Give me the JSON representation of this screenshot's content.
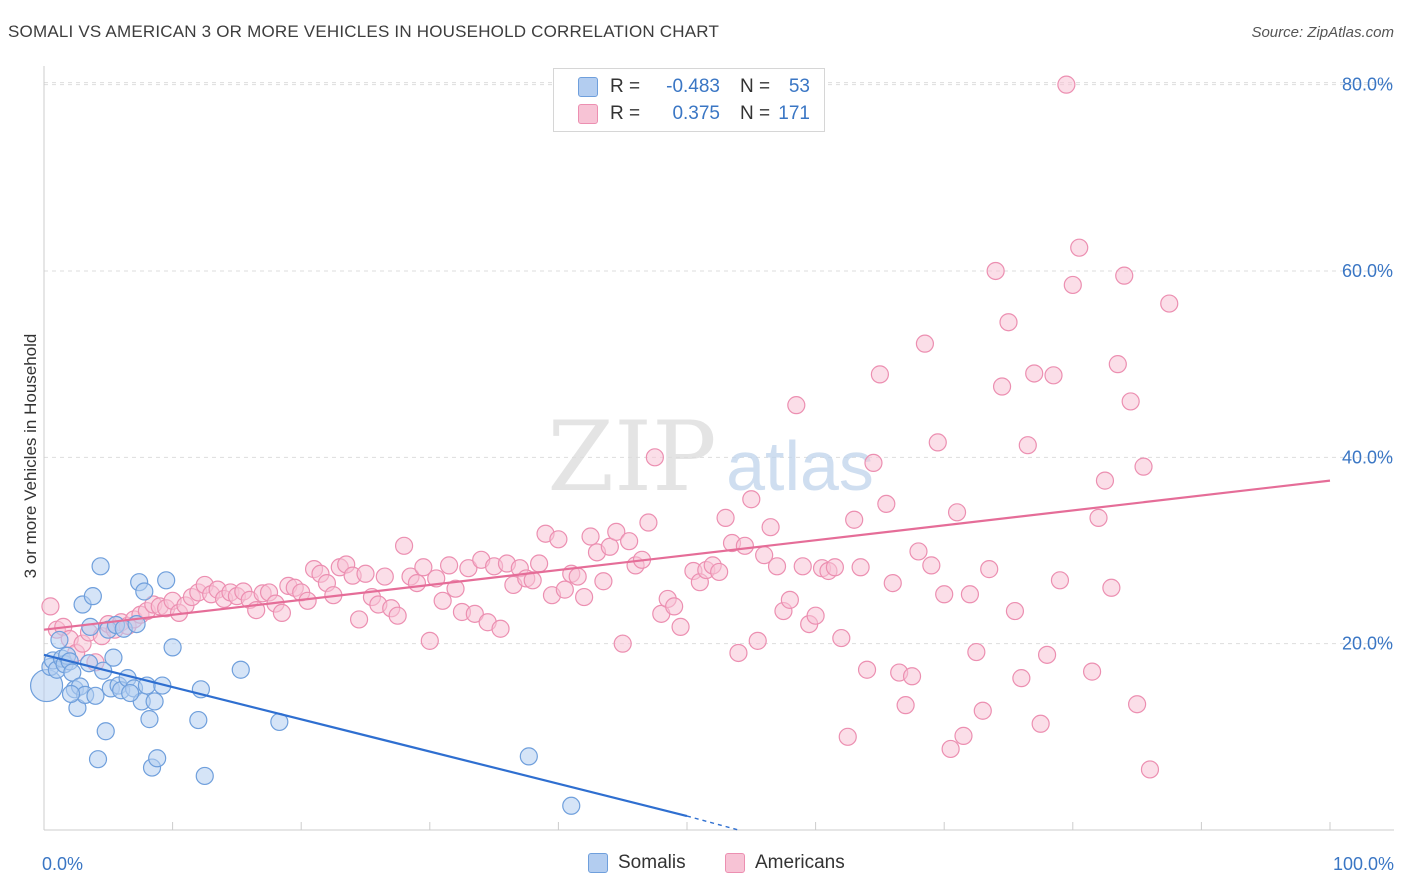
{
  "title": "SOMALI VS AMERICAN 3 OR MORE VEHICLES IN HOUSEHOLD CORRELATION CHART",
  "source": "Source: ZipAtlas.com",
  "watermark": {
    "zip": "ZIP",
    "atlas": "atlas"
  },
  "legend": {
    "rows": [
      {
        "r_label": "R =",
        "r_value": "-0.483",
        "n_label": "N =",
        "n_value": "53"
      },
      {
        "r_label": "R =",
        "r_value": "0.375",
        "n_label": "N =",
        "n_value": "171"
      }
    ]
  },
  "bottom_legend": [
    "Somalis",
    "Americans"
  ],
  "colors": {
    "somalis_fill": "#b3cdf0",
    "somalis_stroke": "#6f9fdc",
    "somalis_line": "#2f6fd0",
    "americans_fill": "#f7c3d5",
    "americans_stroke": "#ec8fb1",
    "americans_line": "#e56d98",
    "tick_label": "#3a76c4",
    "grid": "#dddddd"
  },
  "chart_data": {
    "type": "scatter",
    "title": "SOMALI VS AMERICAN 3 OR MORE VEHICLES IN HOUSEHOLD CORRELATION CHART",
    "xlabel": "",
    "ylabel": "3 or more Vehicles in Household",
    "xlim": [
      0,
      100
    ],
    "ylim": [
      0,
      82
    ],
    "x_tick_labels": [
      {
        "value": 0,
        "label": "0.0%"
      },
      {
        "value": 100,
        "label": "100.0%"
      }
    ],
    "y_tick_labels": [
      {
        "value": 20,
        "label": "20.0%"
      },
      {
        "value": 40,
        "label": "40.0%"
      },
      {
        "value": 60,
        "label": "60.0%"
      },
      {
        "value": 80,
        "label": "80.0%"
      }
    ],
    "grid": true,
    "legend_position": "top-center",
    "series": [
      {
        "name": "Somalis",
        "r": -0.483,
        "n": 53,
        "trend": {
          "x": [
            0,
            50
          ],
          "y": [
            18.8,
            1.5
          ],
          "dashed_to": [
            54,
            0
          ]
        },
        "points": [
          [
            0.2,
            15.5
          ],
          [
            0.5,
            17.5
          ],
          [
            0.7,
            18.2
          ],
          [
            1.0,
            17.2
          ],
          [
            1.2,
            20.4
          ],
          [
            1.4,
            18.4
          ],
          [
            1.6,
            17.8
          ],
          [
            1.8,
            18.7
          ],
          [
            2.0,
            18.1
          ],
          [
            2.2,
            16.9
          ],
          [
            2.4,
            15.1
          ],
          [
            2.6,
            13.1
          ],
          [
            2.8,
            15.4
          ],
          [
            3.0,
            24.2
          ],
          [
            3.2,
            14.5
          ],
          [
            3.5,
            17.9
          ],
          [
            3.6,
            21.8
          ],
          [
            3.8,
            25.1
          ],
          [
            4.0,
            14.4
          ],
          [
            4.2,
            7.6
          ],
          [
            4.4,
            28.3
          ],
          [
            4.6,
            17.1
          ],
          [
            4.8,
            10.6
          ],
          [
            5.0,
            21.5
          ],
          [
            5.2,
            15.2
          ],
          [
            5.4,
            18.5
          ],
          [
            5.6,
            22.0
          ],
          [
            5.8,
            15.5
          ],
          [
            6.0,
            15.0
          ],
          [
            6.2,
            21.6
          ],
          [
            6.5,
            16.3
          ],
          [
            7.0,
            15.2
          ],
          [
            7.2,
            22.1
          ],
          [
            7.4,
            26.6
          ],
          [
            7.6,
            13.8
          ],
          [
            7.8,
            25.6
          ],
          [
            8.0,
            15.5
          ],
          [
            8.2,
            11.9
          ],
          [
            8.4,
            6.7
          ],
          [
            8.6,
            13.8
          ],
          [
            8.8,
            7.7
          ],
          [
            9.2,
            15.5
          ],
          [
            9.5,
            26.8
          ],
          [
            10.0,
            19.6
          ],
          [
            12.0,
            11.8
          ],
          [
            12.2,
            15.1
          ],
          [
            12.5,
            5.8
          ],
          [
            15.3,
            17.2
          ],
          [
            18.3,
            11.6
          ],
          [
            37.7,
            7.9
          ],
          [
            41.0,
            2.6
          ],
          [
            2.1,
            14.6
          ],
          [
            6.7,
            14.7
          ]
        ]
      },
      {
        "name": "Americans",
        "r": 0.375,
        "n": 171,
        "trend": {
          "x": [
            0,
            100
          ],
          "y": [
            21.5,
            37.5
          ]
        },
        "points": [
          [
            0.5,
            24.0
          ],
          [
            1.0,
            21.5
          ],
          [
            1.5,
            21.8
          ],
          [
            2.0,
            20.5
          ],
          [
            2.5,
            19.0
          ],
          [
            3.0,
            20.0
          ],
          [
            3.5,
            21.2
          ],
          [
            4.0,
            18.0
          ],
          [
            4.5,
            20.8
          ],
          [
            5.0,
            22.1
          ],
          [
            5.5,
            21.5
          ],
          [
            6.0,
            22.3
          ],
          [
            6.5,
            21.9
          ],
          [
            7.0,
            22.6
          ],
          [
            7.5,
            23.1
          ],
          [
            8.0,
            23.5
          ],
          [
            8.5,
            24.2
          ],
          [
            9.0,
            24.0
          ],
          [
            9.5,
            23.8
          ],
          [
            10.0,
            24.6
          ],
          [
            10.5,
            23.3
          ],
          [
            11.0,
            24.1
          ],
          [
            11.5,
            25.0
          ],
          [
            12.0,
            25.5
          ],
          [
            12.5,
            26.3
          ],
          [
            13.0,
            25.3
          ],
          [
            13.5,
            25.8
          ],
          [
            14.0,
            24.8
          ],
          [
            14.5,
            25.5
          ],
          [
            15.0,
            25.1
          ],
          [
            15.5,
            25.6
          ],
          [
            16.0,
            24.7
          ],
          [
            16.5,
            23.6
          ],
          [
            17.0,
            25.4
          ],
          [
            17.5,
            25.5
          ],
          [
            18.0,
            24.3
          ],
          [
            18.5,
            23.3
          ],
          [
            19.0,
            26.2
          ],
          [
            19.5,
            26.0
          ],
          [
            20.0,
            25.5
          ],
          [
            20.5,
            24.6
          ],
          [
            21.0,
            28.0
          ],
          [
            21.5,
            27.5
          ],
          [
            22.0,
            26.5
          ],
          [
            22.5,
            25.2
          ],
          [
            23.0,
            28.2
          ],
          [
            23.5,
            28.5
          ],
          [
            24.0,
            27.3
          ],
          [
            24.5,
            22.6
          ],
          [
            25.0,
            27.5
          ],
          [
            25.5,
            25.0
          ],
          [
            26.0,
            24.2
          ],
          [
            26.5,
            27.2
          ],
          [
            27.0,
            23.8
          ],
          [
            27.5,
            23.0
          ],
          [
            28.0,
            30.5
          ],
          [
            28.5,
            27.2
          ],
          [
            29.0,
            26.5
          ],
          [
            29.5,
            28.2
          ],
          [
            30.0,
            20.3
          ],
          [
            30.5,
            27.0
          ],
          [
            31.0,
            24.6
          ],
          [
            31.5,
            28.4
          ],
          [
            32.0,
            25.9
          ],
          [
            32.5,
            23.4
          ],
          [
            33.0,
            28.1
          ],
          [
            33.5,
            23.2
          ],
          [
            34.0,
            29.0
          ],
          [
            34.5,
            22.3
          ],
          [
            35.0,
            28.3
          ],
          [
            35.5,
            21.6
          ],
          [
            36.0,
            28.6
          ],
          [
            36.5,
            26.3
          ],
          [
            37.0,
            28.1
          ],
          [
            37.5,
            27.0
          ],
          [
            38.0,
            26.8
          ],
          [
            38.5,
            28.6
          ],
          [
            39.0,
            31.8
          ],
          [
            39.5,
            25.2
          ],
          [
            40.0,
            31.2
          ],
          [
            40.5,
            25.8
          ],
          [
            41.0,
            27.5
          ],
          [
            41.5,
            27.2
          ],
          [
            42.0,
            25.0
          ],
          [
            42.5,
            31.5
          ],
          [
            43.0,
            29.8
          ],
          [
            43.5,
            26.7
          ],
          [
            44.0,
            30.4
          ],
          [
            44.5,
            32.0
          ],
          [
            45.0,
            20.0
          ],
          [
            45.5,
            31.0
          ],
          [
            46.0,
            28.4
          ],
          [
            46.5,
            29.0
          ],
          [
            47.0,
            33.0
          ],
          [
            47.5,
            40.0
          ],
          [
            48.0,
            23.2
          ],
          [
            48.5,
            24.8
          ],
          [
            49.0,
            24.0
          ],
          [
            49.5,
            21.8
          ],
          [
            50.5,
            27.8
          ],
          [
            51.0,
            26.6
          ],
          [
            51.5,
            27.9
          ],
          [
            52.0,
            28.4
          ],
          [
            52.5,
            27.7
          ],
          [
            53.0,
            33.5
          ],
          [
            53.5,
            30.8
          ],
          [
            54.0,
            19.0
          ],
          [
            54.5,
            30.5
          ],
          [
            55.0,
            35.5
          ],
          [
            55.5,
            20.3
          ],
          [
            56.0,
            29.5
          ],
          [
            56.5,
            32.5
          ],
          [
            57.0,
            28.3
          ],
          [
            57.5,
            23.5
          ],
          [
            58.0,
            24.7
          ],
          [
            58.5,
            45.6
          ],
          [
            59.0,
            28.3
          ],
          [
            59.5,
            22.1
          ],
          [
            60.0,
            23.0
          ],
          [
            60.5,
            28.1
          ],
          [
            61.0,
            27.8
          ],
          [
            61.5,
            28.2
          ],
          [
            62.0,
            20.6
          ],
          [
            62.5,
            10.0
          ],
          [
            63.0,
            33.3
          ],
          [
            63.5,
            28.2
          ],
          [
            64.0,
            17.2
          ],
          [
            64.5,
            39.4
          ],
          [
            65.0,
            48.9
          ],
          [
            65.5,
            35.0
          ],
          [
            66.0,
            26.5
          ],
          [
            66.5,
            16.9
          ],
          [
            67.0,
            13.4
          ],
          [
            67.5,
            16.5
          ],
          [
            68.0,
            29.9
          ],
          [
            68.5,
            52.2
          ],
          [
            69.0,
            28.4
          ],
          [
            69.5,
            41.6
          ],
          [
            70.0,
            25.3
          ],
          [
            70.5,
            8.7
          ],
          [
            71.0,
            34.1
          ],
          [
            71.5,
            10.1
          ],
          [
            72.0,
            25.3
          ],
          [
            72.5,
            19.1
          ],
          [
            73.0,
            12.8
          ],
          [
            73.5,
            28.0
          ],
          [
            74.0,
            60.0
          ],
          [
            74.5,
            47.6
          ],
          [
            75.0,
            54.5
          ],
          [
            75.5,
            23.5
          ],
          [
            76.0,
            16.3
          ],
          [
            76.5,
            41.3
          ],
          [
            77.0,
            49.0
          ],
          [
            77.5,
            11.4
          ],
          [
            78.0,
            18.8
          ],
          [
            78.5,
            48.8
          ],
          [
            79.0,
            26.8
          ],
          [
            79.5,
            80.0
          ],
          [
            80.0,
            58.5
          ],
          [
            80.5,
            62.5
          ],
          [
            81.5,
            17.0
          ],
          [
            82.0,
            33.5
          ],
          [
            82.5,
            37.5
          ],
          [
            83.0,
            26.0
          ],
          [
            83.5,
            50.0
          ],
          [
            84.0,
            59.5
          ],
          [
            84.5,
            46.0
          ],
          [
            85.0,
            13.5
          ],
          [
            85.5,
            39.0
          ],
          [
            86.0,
            6.5
          ],
          [
            87.5,
            56.5
          ]
        ]
      }
    ]
  }
}
